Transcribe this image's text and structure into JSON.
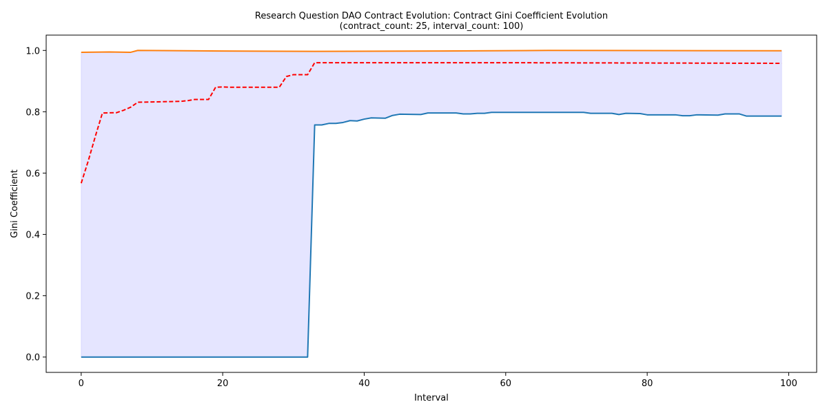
{
  "chart_data": {
    "type": "line",
    "title": "Research Question DAO Contract Evolution: Contract Gini Coefficient Evolution",
    "subtitle": "(contract_count: 25, interval_count: 100)",
    "xlabel": "Interval",
    "ylabel": "Gini Coefficient",
    "xlim": [
      -4.95,
      103.95
    ],
    "ylim": [
      -0.05,
      1.05
    ],
    "x_ticks": [
      0,
      20,
      40,
      60,
      80,
      100
    ],
    "y_ticks": [
      0.0,
      0.2,
      0.4,
      0.6,
      0.8,
      1.0
    ],
    "x_tick_labels": [
      "0",
      "20",
      "40",
      "60",
      "80",
      "100"
    ],
    "y_tick_labels": [
      "0.0",
      "0.2",
      "0.4",
      "0.6",
      "0.8",
      "1.0"
    ],
    "grid": false,
    "legend": "none",
    "fill_between": {
      "lower_series": "min",
      "upper_series": "max",
      "color": "#0000ff",
      "opacity": 0.1
    },
    "x_start": 0,
    "x_end": 99,
    "series": [
      {
        "key": "min",
        "color": "#1f77b4",
        "dash": "solid",
        "points": [
          [
            0,
            0.0
          ],
          [
            32,
            0.0
          ],
          [
            33,
            0.757
          ],
          [
            34,
            0.757
          ],
          [
            35,
            0.762
          ],
          [
            36,
            0.762
          ],
          [
            37,
            0.765
          ],
          [
            38,
            0.771
          ],
          [
            39,
            0.77
          ],
          [
            40,
            0.776
          ],
          [
            41,
            0.78
          ],
          [
            43,
            0.779
          ],
          [
            44,
            0.788
          ],
          [
            45,
            0.792
          ],
          [
            48,
            0.791
          ],
          [
            49,
            0.796
          ],
          [
            53,
            0.796
          ],
          [
            54,
            0.793
          ],
          [
            55,
            0.793
          ],
          [
            56,
            0.795
          ],
          [
            57,
            0.795
          ],
          [
            58,
            0.798
          ],
          [
            71,
            0.798
          ],
          [
            72,
            0.795
          ],
          [
            75,
            0.795
          ],
          [
            76,
            0.791
          ],
          [
            77,
            0.795
          ],
          [
            79,
            0.794
          ],
          [
            80,
            0.79
          ],
          [
            84,
            0.79
          ],
          [
            85,
            0.787
          ],
          [
            86,
            0.787
          ],
          [
            87,
            0.79
          ],
          [
            90,
            0.789
          ],
          [
            91,
            0.793
          ],
          [
            93,
            0.793
          ],
          [
            94,
            0.786
          ],
          [
            99,
            0.786
          ]
        ]
      },
      {
        "key": "max",
        "color": "#ff7f0e",
        "dash": "solid",
        "points": [
          [
            0,
            0.994
          ],
          [
            4,
            0.995
          ],
          [
            7,
            0.994
          ],
          [
            8,
            1.0
          ],
          [
            20,
            0.998
          ],
          [
            33,
            0.997
          ],
          [
            50,
            0.998
          ],
          [
            66,
            1.0
          ],
          [
            99,
            0.999
          ]
        ]
      },
      {
        "key": "mean",
        "color": "#ff0000",
        "dash": "dashed",
        "points": [
          [
            0,
            0.567
          ],
          [
            1,
            0.64
          ],
          [
            2,
            0.72
          ],
          [
            3,
            0.796
          ],
          [
            5,
            0.797
          ],
          [
            6,
            0.805
          ],
          [
            7,
            0.815
          ],
          [
            8,
            0.831
          ],
          [
            10,
            0.832
          ],
          [
            14,
            0.834
          ],
          [
            15,
            0.836
          ],
          [
            16,
            0.84
          ],
          [
            18,
            0.84
          ],
          [
            19,
            0.88
          ],
          [
            20,
            0.881
          ],
          [
            21,
            0.88
          ],
          [
            28,
            0.88
          ],
          [
            29,
            0.915
          ],
          [
            30,
            0.921
          ],
          [
            32,
            0.921
          ],
          [
            33,
            0.96
          ],
          [
            60,
            0.96
          ],
          [
            80,
            0.959
          ],
          [
            99,
            0.958
          ]
        ]
      }
    ]
  }
}
